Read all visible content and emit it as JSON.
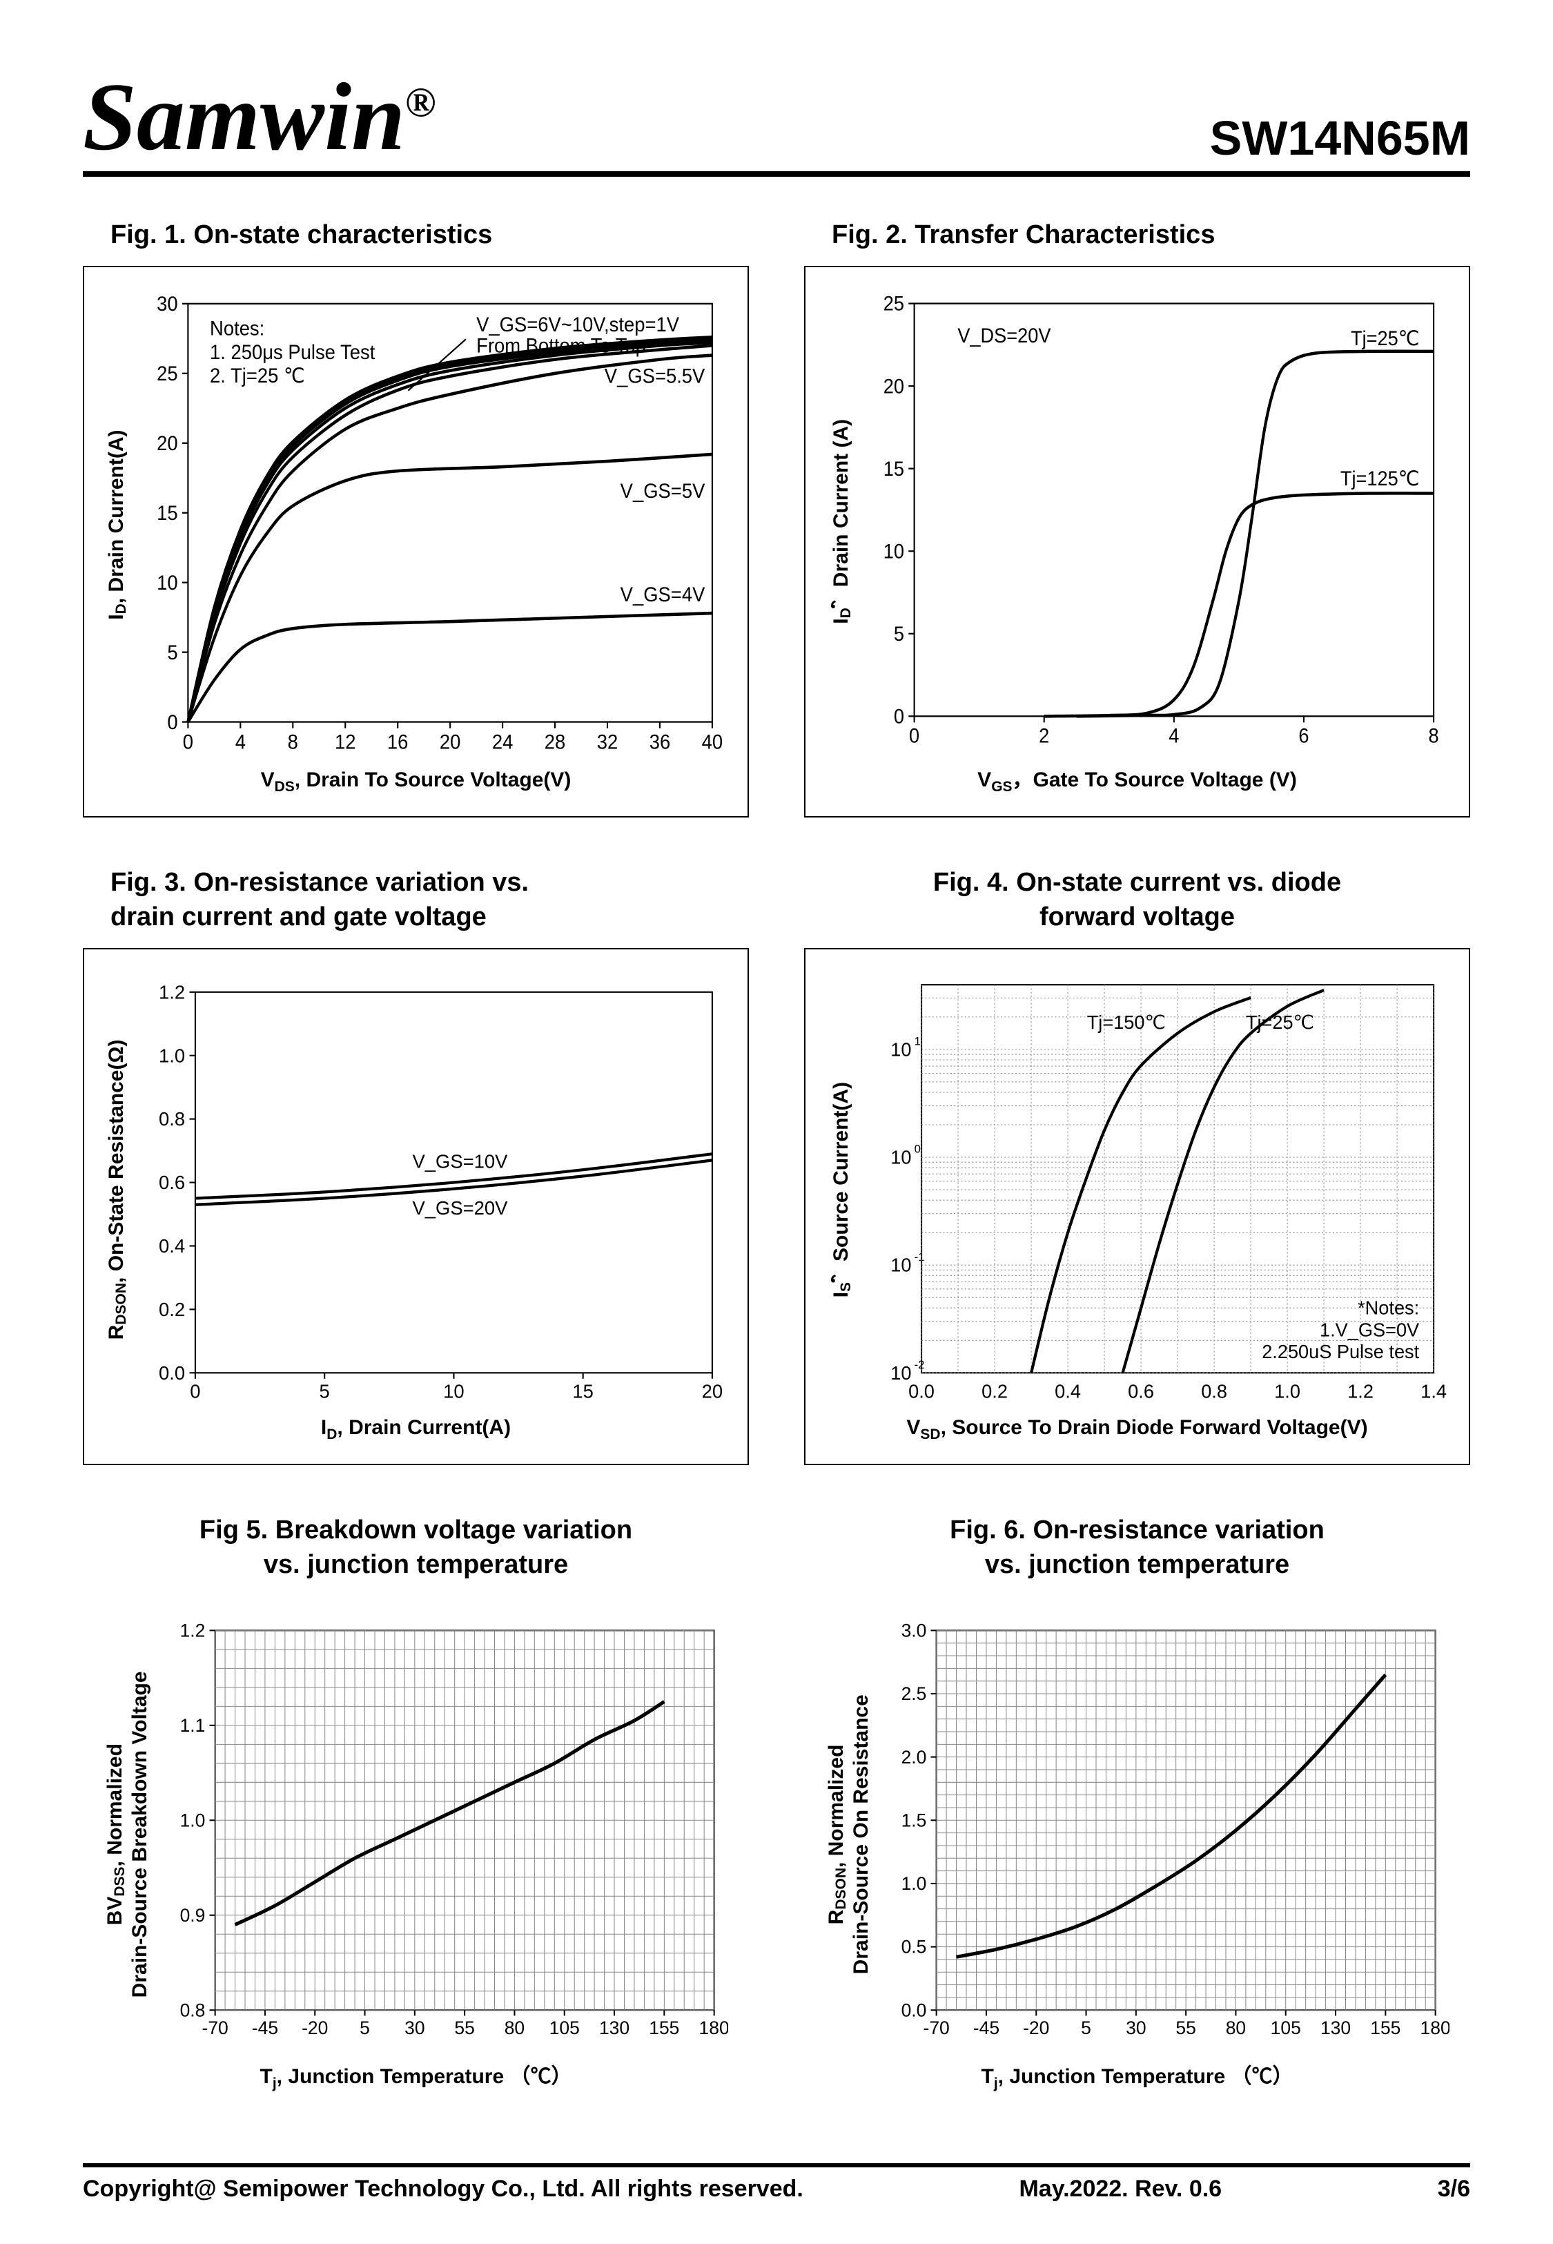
{
  "header": {
    "brand": "Samwin",
    "reg": "®",
    "part": "SW14N65M"
  },
  "footer": {
    "copyright": "Copyright@ Semipower Technology Co., Ltd. All rights reserved.",
    "date": "May.2022. Rev. 0.6",
    "page": "3/6"
  },
  "figs": {
    "f1": {
      "title": "Fig. 1. On-state characteristics",
      "xlabel": "V_DS, Drain To Source Voltage(V)",
      "ylabel": "I_D, Drain Current(A)",
      "xlim": [
        0,
        40
      ],
      "xtick_step": 4,
      "ylim": [
        0,
        30
      ],
      "ytick_step": 5,
      "notes": "Notes:\n1. 250μs Pulse Test\n2. Tj=25 ℃",
      "ann_top": "V_GS=6V~10V,step=1V\nFrom Bottom To Top",
      "curve_labels": [
        "V_GS=5.5V",
        "V_GS=5V",
        "V_GS=4V"
      ],
      "curves": {
        "vgs4": [
          [
            0,
            0
          ],
          [
            2,
            3
          ],
          [
            4,
            5.2
          ],
          [
            6,
            6.2
          ],
          [
            8,
            6.7
          ],
          [
            12,
            7
          ],
          [
            20,
            7.2
          ],
          [
            30,
            7.5
          ],
          [
            40,
            7.8
          ]
        ],
        "vgs5": [
          [
            0,
            0
          ],
          [
            2,
            6
          ],
          [
            4,
            10.5
          ],
          [
            6,
            13.5
          ],
          [
            8,
            15.5
          ],
          [
            12,
            17.3
          ],
          [
            16,
            18
          ],
          [
            24,
            18.3
          ],
          [
            32,
            18.7
          ],
          [
            40,
            19.2
          ]
        ],
        "vgs55": [
          [
            0,
            0
          ],
          [
            2,
            7
          ],
          [
            4,
            12
          ],
          [
            6,
            15.5
          ],
          [
            8,
            18
          ],
          [
            12,
            21
          ],
          [
            16,
            22.5
          ],
          [
            20,
            23.5
          ],
          [
            28,
            25
          ],
          [
            36,
            26
          ],
          [
            40,
            26.3
          ]
        ],
        "vgs6": [
          [
            0,
            0
          ],
          [
            2,
            7.5
          ],
          [
            4,
            12.8
          ],
          [
            6,
            16.5
          ],
          [
            8,
            19
          ],
          [
            12,
            22
          ],
          [
            16,
            23.8
          ],
          [
            20,
            24.8
          ],
          [
            28,
            26
          ],
          [
            36,
            26.7
          ],
          [
            40,
            27
          ]
        ],
        "vgs7": [
          [
            0,
            0
          ],
          [
            2,
            7.8
          ],
          [
            4,
            13.2
          ],
          [
            6,
            17
          ],
          [
            8,
            19.5
          ],
          [
            12,
            22.5
          ],
          [
            16,
            24.2
          ],
          [
            20,
            25.2
          ],
          [
            28,
            26.3
          ],
          [
            36,
            27
          ],
          [
            40,
            27.2
          ]
        ],
        "vgs8": [
          [
            0,
            0
          ],
          [
            2,
            8
          ],
          [
            4,
            13.5
          ],
          [
            6,
            17.3
          ],
          [
            8,
            19.8
          ],
          [
            12,
            22.8
          ],
          [
            16,
            24.5
          ],
          [
            20,
            25.5
          ],
          [
            28,
            26.5
          ],
          [
            36,
            27.2
          ],
          [
            40,
            27.4
          ]
        ],
        "vgs9": [
          [
            0,
            0
          ],
          [
            2,
            8.1
          ],
          [
            4,
            13.7
          ],
          [
            6,
            17.5
          ],
          [
            8,
            20
          ],
          [
            12,
            23
          ],
          [
            16,
            24.7
          ],
          [
            20,
            25.7
          ],
          [
            28,
            26.7
          ],
          [
            36,
            27.3
          ],
          [
            40,
            27.5
          ]
        ],
        "vgs10": [
          [
            0,
            0
          ],
          [
            2,
            8.2
          ],
          [
            4,
            13.8
          ],
          [
            6,
            17.6
          ],
          [
            8,
            20.1
          ],
          [
            12,
            23.1
          ],
          [
            16,
            24.8
          ],
          [
            20,
            25.8
          ],
          [
            28,
            26.8
          ],
          [
            36,
            27.4
          ],
          [
            40,
            27.6
          ]
        ]
      }
    },
    "f2": {
      "title": "Fig. 2. Transfer Characteristics",
      "xlabel": "V_GS，Gate To Source Voltage (V)",
      "ylabel": "I_D，Drain Current (A)",
      "xlim": [
        0,
        8
      ],
      "xtick_step": 2,
      "ylim": [
        0,
        25
      ],
      "ytick_step": 5,
      "ann_vds": "V_DS=20V",
      "curve_labels": [
        "Tj=25℃",
        "Tj=125℃"
      ],
      "curves": {
        "t25": [
          [
            2.5,
            0
          ],
          [
            3.5,
            0.05
          ],
          [
            4.0,
            0.1
          ],
          [
            4.4,
            0.5
          ],
          [
            4.7,
            2
          ],
          [
            5.0,
            7
          ],
          [
            5.2,
            12
          ],
          [
            5.4,
            17.5
          ],
          [
            5.6,
            20.5
          ],
          [
            5.8,
            21.5
          ],
          [
            6.2,
            22
          ],
          [
            7,
            22.1
          ],
          [
            8,
            22.1
          ]
        ],
        "t125": [
          [
            2.0,
            0
          ],
          [
            3.0,
            0.05
          ],
          [
            3.6,
            0.2
          ],
          [
            4.0,
            1
          ],
          [
            4.3,
            3
          ],
          [
            4.6,
            7
          ],
          [
            4.8,
            10
          ],
          [
            5.0,
            12
          ],
          [
            5.2,
            12.8
          ],
          [
            5.5,
            13.2
          ],
          [
            6,
            13.4
          ],
          [
            7,
            13.5
          ],
          [
            8,
            13.5
          ]
        ]
      }
    },
    "f3": {
      "title": "Fig. 3. On-resistance variation vs.\n           drain current and gate voltage",
      "xlabel": "I_D, Drain Current(A)",
      "ylabel": "R_DSON, On-State Resistance(Ω)",
      "xlim": [
        0,
        20
      ],
      "xtick_step": 5,
      "ylim": [
        0,
        1.2
      ],
      "ytick_step": 0.2,
      "curve_labels": [
        "V_GS=10V",
        "V_GS=20V"
      ],
      "curves": {
        "v10": [
          [
            0,
            0.55
          ],
          [
            5,
            0.57
          ],
          [
            10,
            0.6
          ],
          [
            15,
            0.64
          ],
          [
            20,
            0.69
          ]
        ],
        "v20": [
          [
            0,
            0.53
          ],
          [
            5,
            0.55
          ],
          [
            10,
            0.58
          ],
          [
            15,
            0.62
          ],
          [
            20,
            0.67
          ]
        ]
      }
    },
    "f4": {
      "title": "Fig. 4. On-state current vs. diode\n            forward voltage",
      "xlabel": "V_SD, Source To Drain Diode Forward Voltage(V)",
      "ylabel": "I_S，Source Current(A)",
      "xlim": [
        0,
        1.4
      ],
      "xtick_step": 0.2,
      "ylog": true,
      "ylim_exp": [
        -2,
        1.6
      ],
      "notes": "*Notes:\n1.V_GS=0V\n2.250uS Pulse test",
      "curve_labels": [
        "Tj=150℃",
        "Tj=25℃"
      ],
      "curves": {
        "t150": [
          [
            0.3,
            -2
          ],
          [
            0.35,
            -1.3
          ],
          [
            0.4,
            -0.7
          ],
          [
            0.45,
            -0.2
          ],
          [
            0.5,
            0.25
          ],
          [
            0.55,
            0.6
          ],
          [
            0.6,
            0.85
          ],
          [
            0.7,
            1.15
          ],
          [
            0.8,
            1.35
          ],
          [
            0.9,
            1.48
          ]
        ],
        "t25": [
          [
            0.55,
            -2
          ],
          [
            0.6,
            -1.4
          ],
          [
            0.65,
            -0.8
          ],
          [
            0.7,
            -0.25
          ],
          [
            0.75,
            0.25
          ],
          [
            0.8,
            0.65
          ],
          [
            0.85,
            0.95
          ],
          [
            0.9,
            1.15
          ],
          [
            1.0,
            1.4
          ],
          [
            1.1,
            1.55
          ]
        ]
      }
    },
    "f5": {
      "title": "Fig 5. Breakdown voltage variation\n         vs. junction temperature",
      "xlabel": "Tj, Junction Temperature （℃）",
      "ylabel": "BV_DSS, Normalized\nDrain-Source Breakdown Voltage",
      "xlim": [
        -70,
        180
      ],
      "xtick_step": 25,
      "ylim": [
        0.8,
        1.2
      ],
      "ytick_step": 0.1,
      "curve": [
        [
          -60,
          0.89
        ],
        [
          -40,
          0.91
        ],
        [
          -20,
          0.935
        ],
        [
          0,
          0.96
        ],
        [
          20,
          0.98
        ],
        [
          40,
          1.0
        ],
        [
          60,
          1.02
        ],
        [
          80,
          1.04
        ],
        [
          100,
          1.06
        ],
        [
          120,
          1.085
        ],
        [
          140,
          1.105
        ],
        [
          155,
          1.125
        ]
      ]
    },
    "f6": {
      "title": "Fig. 6. On-resistance variation\n          vs. junction temperature",
      "xlabel": "Tj, Junction Temperature （℃）",
      "ylabel": "R_DSON, Normalized\nDrain-Source On Resistance",
      "xlim": [
        -70,
        180
      ],
      "xtick_step": 25,
      "ylim": [
        0,
        3.0
      ],
      "ytick_step": 0.5,
      "curve": [
        [
          -60,
          0.42
        ],
        [
          -40,
          0.48
        ],
        [
          -20,
          0.56
        ],
        [
          0,
          0.66
        ],
        [
          20,
          0.8
        ],
        [
          40,
          0.98
        ],
        [
          60,
          1.18
        ],
        [
          80,
          1.42
        ],
        [
          100,
          1.7
        ],
        [
          120,
          2.02
        ],
        [
          140,
          2.38
        ],
        [
          155,
          2.65
        ]
      ]
    }
  },
  "style": {
    "curve_color": "#000000",
    "grid_color": "#888888",
    "dot_grid_color": "#777777",
    "bg": "#ffffff"
  }
}
